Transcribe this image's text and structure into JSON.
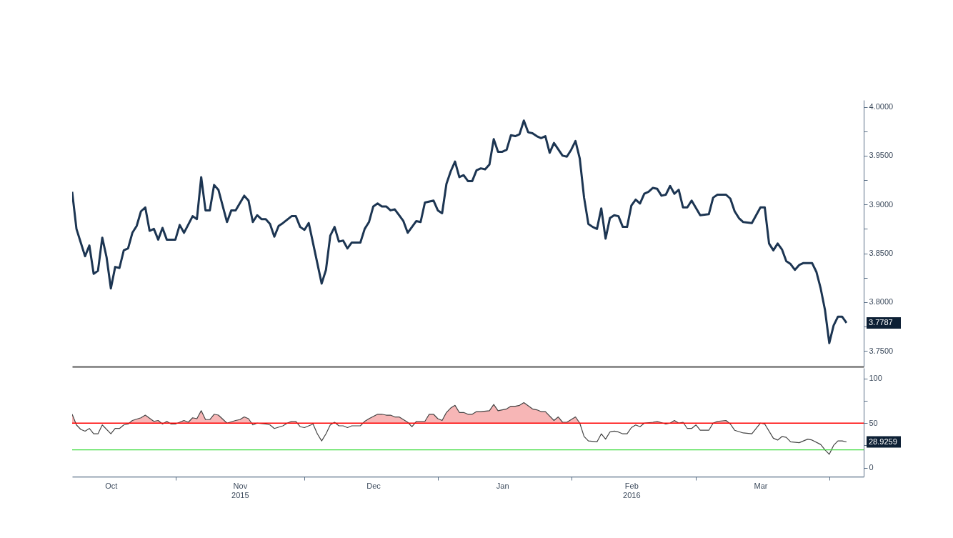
{
  "chart_data": [
    {
      "type": "line",
      "xlim": [
        "2015-10-08",
        "2016-04-09"
      ],
      "ylim": [
        3.734,
        4.007
      ],
      "tick_labels": "y",
      "yticks": [
        {
          "value": 3.75,
          "label": "3.7500"
        },
        {
          "value": 3.775,
          "label": null
        },
        {
          "value": 3.8,
          "label": "3.8000"
        },
        {
          "value": 3.825,
          "label": null
        },
        {
          "value": 3.85,
          "label": "3.8500"
        },
        {
          "value": 3.875,
          "label": null
        },
        {
          "value": 3.9,
          "label": "3.9000"
        },
        {
          "value": 3.925,
          "label": null
        },
        {
          "value": 3.95,
          "label": "3.9500"
        },
        {
          "value": 3.975,
          "label": null
        },
        {
          "value": 4.0,
          "label": "4.0000"
        }
      ],
      "series": [
        {
          "color": "#1c3552",
          "x": [
            "2015-10-08",
            "2015-10-09",
            "2015-10-10",
            "2015-10-11",
            "2015-10-12",
            "2015-10-13",
            "2015-10-14",
            "2015-10-15",
            "2015-10-16",
            "2015-10-17",
            "2015-10-18",
            "2015-10-19",
            "2015-10-20",
            "2015-10-21",
            "2015-10-22",
            "2015-10-23",
            "2015-10-24",
            "2015-10-25",
            "2015-10-26",
            "2015-10-27",
            "2015-10-28",
            "2015-10-29",
            "2015-10-30",
            "2015-11-01",
            "2015-11-02",
            "2015-11-03",
            "2015-11-05",
            "2015-11-06",
            "2015-11-07",
            "2015-11-08",
            "2015-11-09",
            "2015-11-10",
            "2015-11-11",
            "2015-11-13",
            "2015-11-14",
            "2015-11-15",
            "2015-11-17",
            "2015-11-18",
            "2015-11-19",
            "2015-11-20",
            "2015-11-21",
            "2015-11-22",
            "2015-11-23",
            "2015-11-24",
            "2015-11-25",
            "2015-11-26",
            "2015-11-28",
            "2015-11-29",
            "2015-11-30",
            "2015-12-01",
            "2015-12-02",
            "2015-12-05",
            "2015-12-06",
            "2015-12-07",
            "2015-12-08",
            "2015-12-09",
            "2015-12-10",
            "2015-12-11",
            "2015-12-12",
            "2015-12-14",
            "2015-12-15",
            "2015-12-16",
            "2015-12-17",
            "2015-12-18",
            "2015-12-19",
            "2015-12-20",
            "2015-12-21",
            "2015-12-22",
            "2015-12-23",
            "2015-12-24",
            "2015-12-25",
            "2015-12-27",
            "2015-12-28",
            "2015-12-29",
            "2015-12-31",
            "2016-01-01",
            "2016-01-02",
            "2016-01-03",
            "2016-01-04",
            "2016-01-05",
            "2016-01-06",
            "2016-01-07",
            "2016-01-08",
            "2016-01-09",
            "2016-01-10",
            "2016-01-11",
            "2016-01-12",
            "2016-01-13",
            "2016-01-14",
            "2016-01-15",
            "2016-01-16",
            "2016-01-17",
            "2016-01-18",
            "2016-01-19",
            "2016-01-20",
            "2016-01-21",
            "2016-01-22",
            "2016-01-23",
            "2016-01-24",
            "2016-01-25",
            "2016-01-26",
            "2016-01-27",
            "2016-01-28",
            "2016-01-30",
            "2016-01-31",
            "2016-02-01",
            "2016-02-02",
            "2016-02-03",
            "2016-02-04",
            "2016-02-05",
            "2016-02-06",
            "2016-02-07",
            "2016-02-08",
            "2016-02-09",
            "2016-02-10",
            "2016-02-11",
            "2016-02-12",
            "2016-02-13",
            "2016-02-14",
            "2016-02-15",
            "2016-02-16",
            "2016-02-17",
            "2016-02-18",
            "2016-02-19",
            "2016-02-20",
            "2016-02-21",
            "2016-02-22",
            "2016-02-23",
            "2016-02-24",
            "2016-02-25",
            "2016-02-26",
            "2016-02-27",
            "2016-02-28",
            "2016-02-29",
            "2016-03-02",
            "2016-03-04",
            "2016-03-05",
            "2016-03-06",
            "2016-03-08",
            "2016-03-09",
            "2016-03-10",
            "2016-03-11",
            "2016-03-12",
            "2016-03-14",
            "2016-03-15",
            "2016-03-16",
            "2016-03-17",
            "2016-03-18",
            "2016-03-19",
            "2016-03-20",
            "2016-03-21",
            "2016-03-22",
            "2016-03-23",
            "2016-03-24",
            "2016-03-25",
            "2016-03-26",
            "2016-03-28",
            "2016-03-29",
            "2016-03-30",
            "2016-03-31",
            "2016-04-01",
            "2016-04-02",
            "2016-04-03",
            "2016-04-04",
            "2016-04-05"
          ],
          "values": [
            3.913,
            3.875,
            3.861,
            3.847,
            3.858,
            3.829,
            3.832,
            3.866,
            3.846,
            3.814,
            3.836,
            3.835,
            3.853,
            3.855,
            3.871,
            3.878,
            3.893,
            3.897,
            3.873,
            3.875,
            3.864,
            3.876,
            3.864,
            3.864,
            3.879,
            3.871,
            3.888,
            3.885,
            3.928,
            3.894,
            3.894,
            3.92,
            3.915,
            3.882,
            3.894,
            3.894,
            3.909,
            3.904,
            3.882,
            3.889,
            3.885,
            3.885,
            3.88,
            3.867,
            3.878,
            3.881,
            3.888,
            3.888,
            3.877,
            3.874,
            3.881,
            3.819,
            3.833,
            3.868,
            3.877,
            3.862,
            3.863,
            3.855,
            3.861,
            3.861,
            3.875,
            3.882,
            3.898,
            3.901,
            3.898,
            3.898,
            3.894,
            3.895,
            3.889,
            3.883,
            3.871,
            3.883,
            3.882,
            3.902,
            3.904,
            3.894,
            3.891,
            3.921,
            3.934,
            3.944,
            3.928,
            3.93,
            3.924,
            3.924,
            3.935,
            3.937,
            3.936,
            3.941,
            3.967,
            3.954,
            3.954,
            3.956,
            3.971,
            3.97,
            3.972,
            3.986,
            3.974,
            3.973,
            3.97,
            3.968,
            3.97,
            3.953,
            3.963,
            3.95,
            3.949,
            3.956,
            3.965,
            3.947,
            3.907,
            3.88,
            3.877,
            3.875,
            3.896,
            3.865,
            3.886,
            3.889,
            3.888,
            3.877,
            3.877,
            3.899,
            3.905,
            3.901,
            3.911,
            3.913,
            3.917,
            3.916,
            3.909,
            3.91,
            3.919,
            3.911,
            3.915,
            3.897,
            3.897,
            3.904,
            3.889,
            3.89,
            3.907,
            3.91,
            3.91,
            3.906,
            3.893,
            3.886,
            3.882,
            3.881,
            3.889,
            3.897,
            3.897,
            3.86,
            3.853,
            3.86,
            3.854,
            3.842,
            3.839,
            3.833,
            3.838,
            3.84,
            3.84,
            3.831,
            3.814,
            3.792,
            3.758,
            3.776,
            3.785,
            3.785,
            3.7787
          ]
        }
      ],
      "annotations": [
        "3.7787"
      ]
    },
    {
      "type": "line",
      "xlim": [
        "2015-10-08",
        "2016-04-09"
      ],
      "ylim": [
        -10,
        112
      ],
      "yticks": [
        0,
        {
          "value": 25,
          "label": null
        },
        50,
        {
          "value": 75,
          "label": null
        },
        100
      ],
      "xticks": [
        {
          "value": "2015-10-17",
          "label": "Oct"
        },
        {
          "value": "2015-11-01",
          "label": null
        },
        {
          "value": "2015-11-16",
          "label": "Nov\n2015"
        },
        {
          "value": "2015-12-01",
          "label": null
        },
        {
          "value": "2015-12-17",
          "label": "Dec"
        },
        {
          "value": "2016-01-01",
          "label": null
        },
        {
          "value": "2016-01-16",
          "label": "Jan"
        },
        {
          "value": "2016-02-01",
          "label": null
        },
        {
          "value": "2016-02-15",
          "label": "Feb\n2016"
        },
        {
          "value": "2016-03-01",
          "label": null
        },
        {
          "value": "2016-03-16",
          "label": "Mar"
        },
        {
          "value": "2016-04-01",
          "label": null
        }
      ],
      "ref_lines": [
        {
          "axis": "y",
          "value": 50,
          "color": "#ff0000"
        },
        {
          "axis": "y",
          "value": 20,
          "color": "#3ddc3d"
        }
      ],
      "series": [
        {
          "color": "#444444",
          "x": [
            "2015-10-08",
            "2015-10-09",
            "2015-10-10",
            "2015-10-11",
            "2015-10-12",
            "2015-10-13",
            "2015-10-14",
            "2015-10-15",
            "2015-10-17",
            "2015-10-18",
            "2015-10-19",
            "2015-10-20",
            "2015-10-21",
            "2015-10-22",
            "2015-10-24",
            "2015-10-25",
            "2015-10-27",
            "2015-10-28",
            "2015-10-29",
            "2015-10-30",
            "2015-10-31",
            "2015-11-01",
            "2015-11-03",
            "2015-11-04",
            "2015-11-05",
            "2015-11-06",
            "2015-11-07",
            "2015-11-08",
            "2015-11-09",
            "2015-11-10",
            "2015-11-11",
            "2015-11-13",
            "2015-11-15",
            "2015-11-16",
            "2015-11-17",
            "2015-11-18",
            "2015-11-19",
            "2015-11-20",
            "2015-11-22",
            "2015-11-23",
            "2015-11-24",
            "2015-11-26",
            "2015-11-27",
            "2015-11-28",
            "2015-11-29",
            "2015-11-30",
            "2015-12-01",
            "2015-12-03",
            "2015-12-04",
            "2015-12-05",
            "2015-12-06",
            "2015-12-07",
            "2015-12-08",
            "2015-12-09",
            "2015-12-10",
            "2015-12-11",
            "2015-12-12",
            "2015-12-14",
            "2015-12-15",
            "2015-12-16",
            "2015-12-18",
            "2015-12-19",
            "2015-12-20",
            "2015-12-21",
            "2015-12-22",
            "2015-12-23",
            "2015-12-24",
            "2015-12-25",
            "2015-12-26",
            "2015-12-27",
            "2015-12-29",
            "2015-12-30",
            "2015-12-31",
            "2016-01-01",
            "2016-01-02",
            "2016-01-03",
            "2016-01-04",
            "2016-01-05",
            "2016-01-06",
            "2016-01-07",
            "2016-01-08",
            "2016-01-09",
            "2016-01-10",
            "2016-01-11",
            "2016-01-13",
            "2016-01-14",
            "2016-01-15",
            "2016-01-17",
            "2016-01-18",
            "2016-01-19",
            "2016-01-20",
            "2016-01-21",
            "2016-01-23",
            "2016-01-24",
            "2016-01-25",
            "2016-01-26",
            "2016-01-28",
            "2016-01-29",
            "2016-01-30",
            "2016-01-31",
            "2016-02-02",
            "2016-02-03",
            "2016-02-04",
            "2016-02-05",
            "2016-02-07",
            "2016-02-08",
            "2016-02-09",
            "2016-02-10",
            "2016-02-11",
            "2016-02-12",
            "2016-02-13",
            "2016-02-14",
            "2016-02-15",
            "2016-02-16",
            "2016-02-17",
            "2016-02-18",
            "2016-02-20",
            "2016-02-21",
            "2016-02-23",
            "2016-02-24",
            "2016-02-25",
            "2016-02-26",
            "2016-02-27",
            "2016-02-28",
            "2016-02-29",
            "2016-03-01",
            "2016-03-02",
            "2016-03-04",
            "2016-03-05",
            "2016-03-06",
            "2016-03-08",
            "2016-03-09",
            "2016-03-10",
            "2016-03-12",
            "2016-03-14",
            "2016-03-15",
            "2016-03-16",
            "2016-03-17",
            "2016-03-19",
            "2016-03-20",
            "2016-03-21",
            "2016-03-22",
            "2016-03-23",
            "2016-03-25",
            "2016-03-26",
            "2016-03-27",
            "2016-03-28",
            "2016-03-30",
            "2016-03-31",
            "2016-04-01",
            "2016-04-02",
            "2016-04-03",
            "2016-04-04",
            "2016-04-05"
          ],
          "values": [
            60,
            48,
            43,
            41,
            44,
            38,
            38,
            48,
            38,
            44,
            44,
            48,
            49,
            53,
            56,
            59,
            52,
            53,
            49,
            52,
            49,
            49,
            53,
            51,
            56,
            55,
            64,
            54,
            54,
            60,
            59,
            50,
            53,
            54,
            57,
            55,
            48,
            50,
            49,
            48,
            44,
            47,
            50,
            52,
            52,
            46,
            45,
            49,
            38,
            30,
            38,
            48,
            51,
            47,
            47,
            45,
            47,
            47,
            52,
            55,
            60,
            60,
            59,
            59,
            57,
            57,
            54,
            51,
            46,
            52,
            52,
            60,
            60,
            55,
            53,
            62,
            67,
            70,
            62,
            62,
            60,
            60,
            63,
            63,
            64,
            71,
            64,
            66,
            69,
            69,
            70,
            73,
            66,
            65,
            63,
            63,
            53,
            57,
            51,
            51,
            57,
            50,
            35,
            30,
            29,
            38,
            32,
            40,
            41,
            40,
            38,
            38,
            45,
            48,
            46,
            50,
            51,
            52,
            49,
            50,
            53,
            50,
            51,
            44,
            44,
            48,
            42,
            42,
            50,
            52,
            53,
            49,
            42,
            39,
            38,
            44,
            50,
            49,
            33,
            31,
            35,
            34,
            29,
            28,
            30,
            32,
            31,
            26,
            20,
            15,
            25,
            30,
            30,
            28.9259
          ]
        }
      ],
      "annotations": [
        "28.9259"
      ]
    }
  ]
}
